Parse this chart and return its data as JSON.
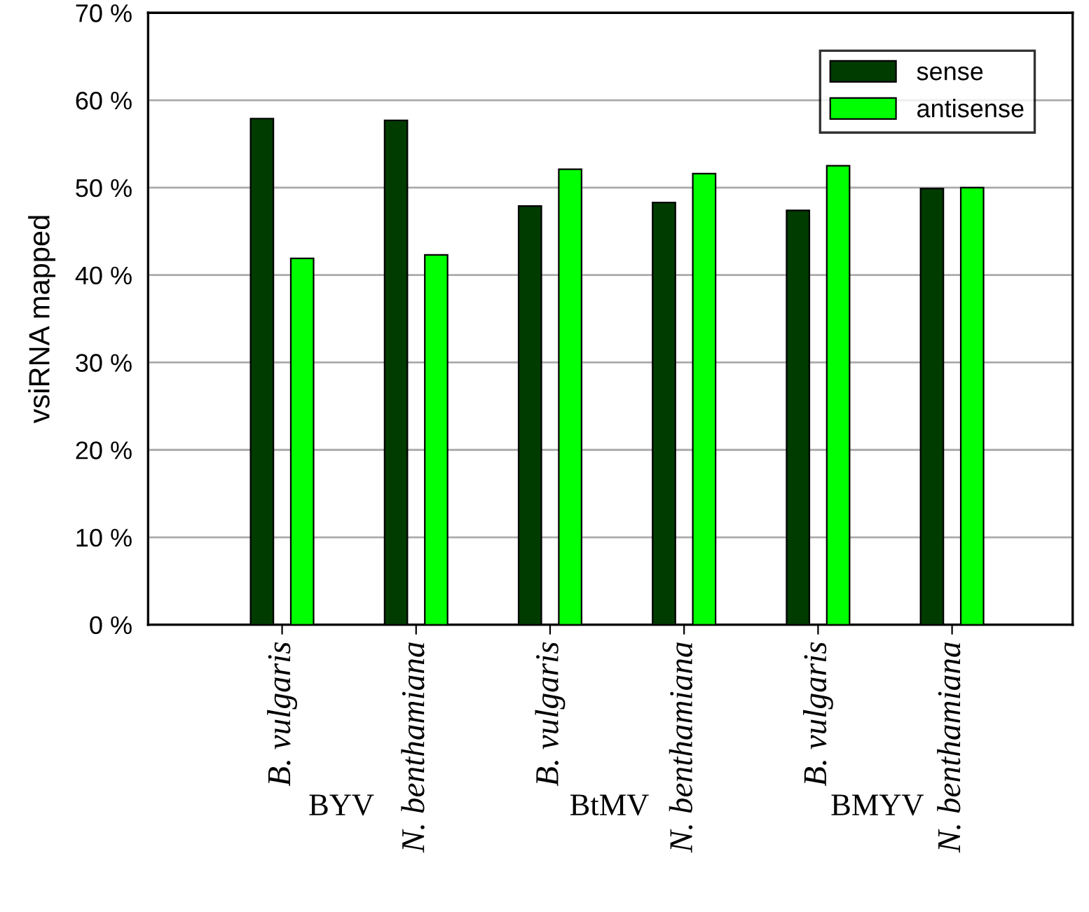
{
  "chart_data": {
    "type": "bar",
    "ylabel": "vsiRNA mapped",
    "categories": [
      "B. vulgaris",
      "N. benthamiana",
      "B. vulgaris",
      "N. benthamiana",
      "B. vulgaris",
      "N. benthamiana"
    ],
    "series": [
      {
        "name": "sense",
        "color": "#003c00",
        "values": [
          57.9,
          57.7,
          47.9,
          48.3,
          47.4,
          49.9
        ]
      },
      {
        "name": "antisense",
        "color": "#00ff00",
        "values": [
          41.9,
          42.3,
          52.1,
          51.6,
          52.5,
          50.0
        ]
      }
    ],
    "annotations": [
      "BYV",
      "BtMV",
      "BMYV"
    ],
    "ylim": [
      0,
      70
    ],
    "yticks": [
      {
        "value": 0,
        "label": "0 %"
      },
      {
        "value": 10,
        "label": "10 %"
      },
      {
        "value": 20,
        "label": "20 %"
      },
      {
        "value": 30,
        "label": "30 %"
      },
      {
        "value": 40,
        "label": "40 %"
      },
      {
        "value": 50,
        "label": "50 %"
      },
      {
        "value": 60,
        "label": "60 %"
      },
      {
        "value": 70,
        "label": "70 %"
      }
    ],
    "grid": "y",
    "legend": "top right"
  }
}
